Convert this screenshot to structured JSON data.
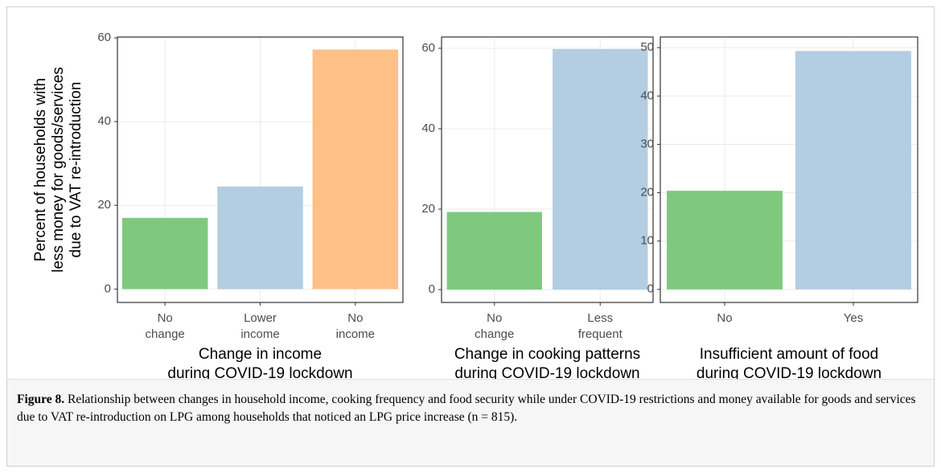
{
  "chart_data": [
    {
      "type": "bar",
      "ylabel": [
        "Percent of households with",
        "less money for goods/services",
        "due to VAT re-introduction"
      ],
      "xlabel": [
        "Change in income",
        "during COVID-19 lockdown"
      ],
      "categories": [
        "No change",
        "Lower income",
        "No income"
      ],
      "values": [
        17,
        24.5,
        57.2
      ],
      "colors": [
        "#7fc97f",
        "#b3cde3",
        "#fdc086"
      ],
      "ylim": [
        -3.2,
        60.2
      ],
      "yticks": [
        0,
        20,
        40,
        60
      ],
      "grid": true
    },
    {
      "type": "bar",
      "xlabel": [
        "Change in cooking patterns",
        "during COVID-19 lockdown"
      ],
      "categories": [
        "No change",
        "Less frequent"
      ],
      "values": [
        19.3,
        59.8
      ],
      "colors": [
        "#7fc97f",
        "#b3cde3"
      ],
      "ylim": [
        -3.2,
        62.8
      ],
      "yticks": [
        0,
        20,
        40,
        60
      ],
      "grid": true
    },
    {
      "type": "bar",
      "xlabel": [
        "Insufficient amount of food",
        "during COVID-19 lockdown"
      ],
      "categories": [
        "No",
        "Yes"
      ],
      "values": [
        20.4,
        49.3
      ],
      "colors": [
        "#7fc97f",
        "#b3cde3"
      ],
      "ylim": [
        -2.7,
        52.2
      ],
      "yticks": [
        0,
        10,
        20,
        30,
        40,
        50
      ],
      "grid": true
    }
  ],
  "caption": {
    "label": "Figure 8.",
    "text": "Relationship between changes in household income, cooking frequency and food security while under COVID-19 restrictions and money available for goods and services due to VAT re-introduction on LPG among households that noticed an LPG price increase (n = 815)."
  }
}
